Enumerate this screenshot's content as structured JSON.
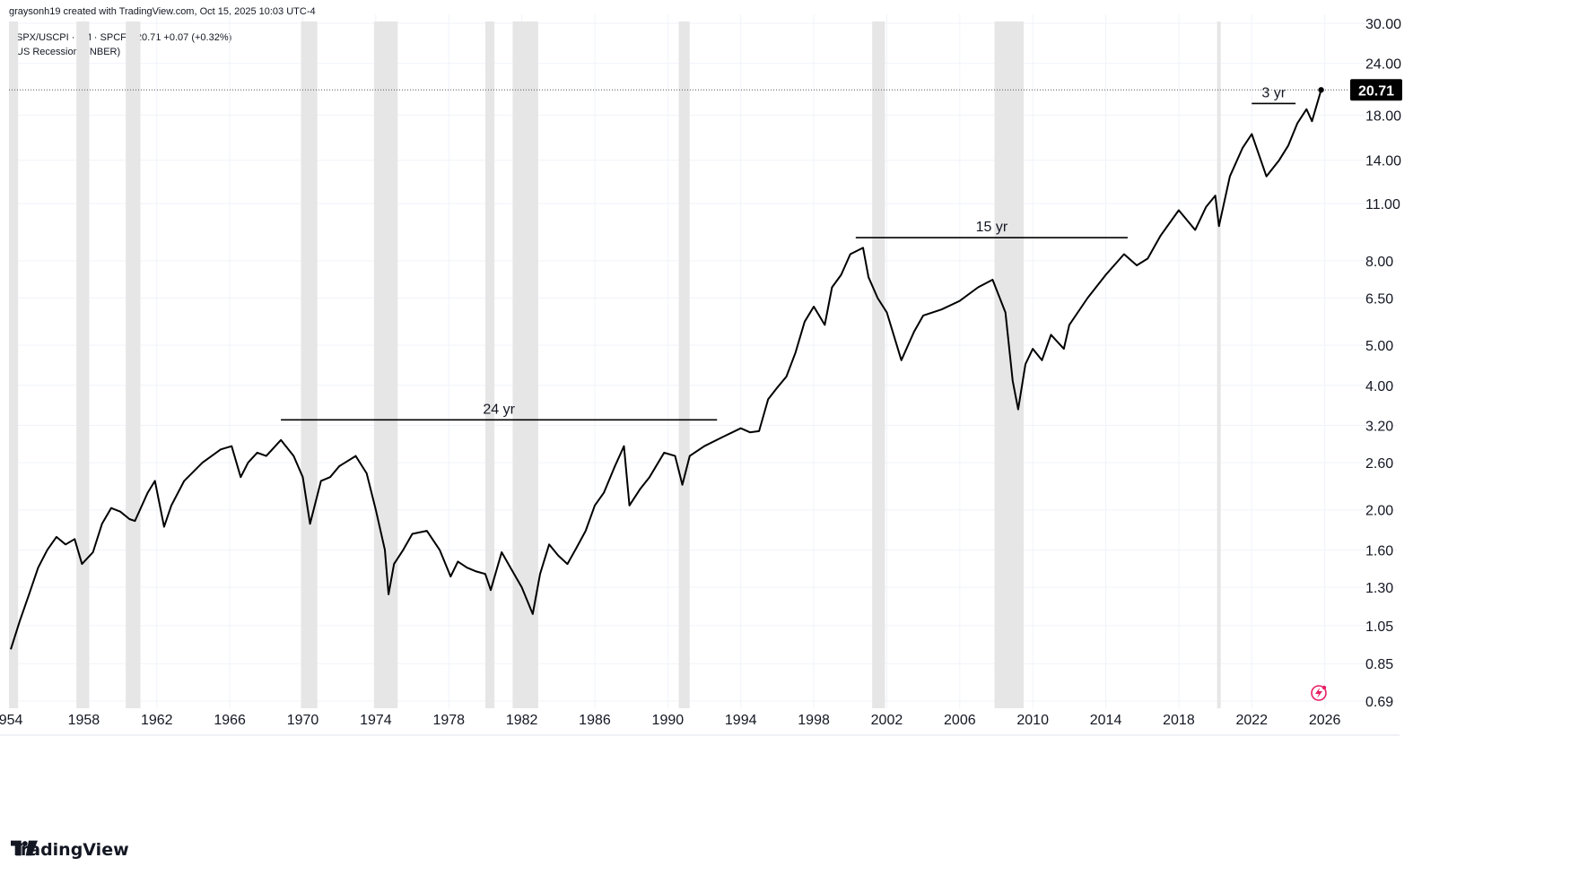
{
  "header": {
    "credit": "graysonh19 created with TradingView.com, Oct 15, 2025 10:03 UTC-4",
    "legend_line1": "SPX/USCPI · 1M · SPCFD  20.71  +0.07 (+0.32%)",
    "legend_line2": "US Recessions (NBER)"
  },
  "brand": {
    "name": "TradingView",
    "icon": "tradingview-logo-icon"
  },
  "price_label": "20.71",
  "chart_data": {
    "type": "line",
    "series": [
      {
        "name": "SPX/USCPI",
        "points": [
          [
            1954.0,
            0.92
          ],
          [
            1954.5,
            1.08
          ],
          [
            1955.0,
            1.25
          ],
          [
            1955.5,
            1.45
          ],
          [
            1956.0,
            1.6
          ],
          [
            1956.5,
            1.72
          ],
          [
            1957.0,
            1.65
          ],
          [
            1957.5,
            1.7
          ],
          [
            1957.9,
            1.48
          ],
          [
            1958.5,
            1.58
          ],
          [
            1959.0,
            1.85
          ],
          [
            1959.5,
            2.02
          ],
          [
            1960.0,
            1.98
          ],
          [
            1960.5,
            1.9
          ],
          [
            1960.8,
            1.88
          ],
          [
            1961.5,
            2.2
          ],
          [
            1961.9,
            2.35
          ],
          [
            1962.4,
            1.82
          ],
          [
            1962.8,
            2.05
          ],
          [
            1963.5,
            2.35
          ],
          [
            1964.5,
            2.6
          ],
          [
            1965.5,
            2.8
          ],
          [
            1966.1,
            2.85
          ],
          [
            1966.6,
            2.4
          ],
          [
            1967.0,
            2.6
          ],
          [
            1967.5,
            2.75
          ],
          [
            1968.0,
            2.7
          ],
          [
            1968.8,
            2.95
          ],
          [
            1969.5,
            2.7
          ],
          [
            1970.0,
            2.4
          ],
          [
            1970.4,
            1.85
          ],
          [
            1971.0,
            2.35
          ],
          [
            1971.5,
            2.4
          ],
          [
            1972.0,
            2.55
          ],
          [
            1972.9,
            2.7
          ],
          [
            1973.5,
            2.45
          ],
          [
            1974.0,
            2.0
          ],
          [
            1974.5,
            1.6
          ],
          [
            1974.7,
            1.25
          ],
          [
            1975.0,
            1.48
          ],
          [
            1975.5,
            1.6
          ],
          [
            1976.0,
            1.75
          ],
          [
            1976.8,
            1.78
          ],
          [
            1977.5,
            1.6
          ],
          [
            1978.1,
            1.38
          ],
          [
            1978.5,
            1.5
          ],
          [
            1979.0,
            1.45
          ],
          [
            1979.5,
            1.42
          ],
          [
            1980.0,
            1.4
          ],
          [
            1980.3,
            1.28
          ],
          [
            1980.9,
            1.58
          ],
          [
            1981.5,
            1.42
          ],
          [
            1982.0,
            1.3
          ],
          [
            1982.6,
            1.12
          ],
          [
            1983.0,
            1.4
          ],
          [
            1983.5,
            1.65
          ],
          [
            1984.0,
            1.55
          ],
          [
            1984.5,
            1.48
          ],
          [
            1985.0,
            1.62
          ],
          [
            1985.5,
            1.78
          ],
          [
            1986.0,
            2.05
          ],
          [
            1986.5,
            2.2
          ],
          [
            1987.1,
            2.55
          ],
          [
            1987.6,
            2.85
          ],
          [
            1987.9,
            2.05
          ],
          [
            1988.5,
            2.25
          ],
          [
            1989.0,
            2.4
          ],
          [
            1989.8,
            2.75
          ],
          [
            1990.4,
            2.7
          ],
          [
            1990.8,
            2.3
          ],
          [
            1991.2,
            2.7
          ],
          [
            1992.0,
            2.85
          ],
          [
            1993.0,
            3.0
          ],
          [
            1994.0,
            3.15
          ],
          [
            1994.5,
            3.08
          ],
          [
            1995.0,
            3.1
          ],
          [
            1995.5,
            3.7
          ],
          [
            1996.0,
            3.95
          ],
          [
            1996.5,
            4.2
          ],
          [
            1997.0,
            4.8
          ],
          [
            1997.5,
            5.7
          ],
          [
            1998.0,
            6.2
          ],
          [
            1998.6,
            5.6
          ],
          [
            1999.0,
            6.9
          ],
          [
            1999.5,
            7.4
          ],
          [
            2000.0,
            8.3
          ],
          [
            2000.7,
            8.6
          ],
          [
            2001.0,
            7.3
          ],
          [
            2001.5,
            6.5
          ],
          [
            2002.0,
            6.0
          ],
          [
            2002.8,
            4.6
          ],
          [
            2003.5,
            5.4
          ],
          [
            2004.0,
            5.9
          ],
          [
            2005.0,
            6.1
          ],
          [
            2006.0,
            6.4
          ],
          [
            2007.0,
            6.9
          ],
          [
            2007.8,
            7.2
          ],
          [
            2008.5,
            6.0
          ],
          [
            2008.9,
            4.1
          ],
          [
            2009.2,
            3.5
          ],
          [
            2009.6,
            4.5
          ],
          [
            2010.0,
            4.9
          ],
          [
            2010.5,
            4.6
          ],
          [
            2011.0,
            5.3
          ],
          [
            2011.7,
            4.9
          ],
          [
            2012.0,
            5.6
          ],
          [
            2013.0,
            6.5
          ],
          [
            2014.0,
            7.4
          ],
          [
            2015.0,
            8.3
          ],
          [
            2015.7,
            7.8
          ],
          [
            2016.3,
            8.1
          ],
          [
            2017.0,
            9.2
          ],
          [
            2018.0,
            10.6
          ],
          [
            2018.9,
            9.5
          ],
          [
            2019.5,
            10.8
          ],
          [
            2020.0,
            11.5
          ],
          [
            2020.2,
            9.7
          ],
          [
            2020.8,
            12.8
          ],
          [
            2021.5,
            15.0
          ],
          [
            2022.0,
            16.2
          ],
          [
            2022.8,
            12.8
          ],
          [
            2023.5,
            14.0
          ],
          [
            2024.0,
            15.2
          ],
          [
            2024.5,
            17.2
          ],
          [
            2025.0,
            18.6
          ],
          [
            2025.3,
            17.4
          ],
          [
            2025.8,
            20.71
          ]
        ]
      }
    ],
    "x_ticks": [
      "1954",
      "1958",
      "1962",
      "1966",
      "1970",
      "1974",
      "1978",
      "1982",
      "1986",
      "1990",
      "1994",
      "1998",
      "2002",
      "2006",
      "2010",
      "2014",
      "2018",
      "2022",
      "2026"
    ],
    "x_tick_labels": [
      "954",
      "1958",
      "1962",
      "1966",
      "1970",
      "1974",
      "1978",
      "1982",
      "1986",
      "1990",
      "1994",
      "1998",
      "2002",
      "2006",
      "2010",
      "2014",
      "2018",
      "2022",
      "2026"
    ],
    "y_ticks": [
      "30.00",
      "24.00",
      "18.00",
      "14.00",
      "11.00",
      "8.00",
      "6.50",
      "5.00",
      "4.00",
      "3.20",
      "2.60",
      "2.00",
      "1.60",
      "1.30",
      "1.05",
      "0.85",
      "0.69"
    ],
    "y_scale": "log",
    "xlim": [
      1953.9,
      2027.0
    ],
    "ylim": [
      0.69,
      30.0
    ],
    "recessions": [
      [
        1953.6,
        1954.4
      ],
      [
        1957.6,
        1958.3
      ],
      [
        1960.3,
        1961.1
      ],
      [
        1969.9,
        1970.8
      ],
      [
        1973.9,
        1975.2
      ],
      [
        1980.0,
        1980.5
      ],
      [
        1981.5,
        1982.9
      ],
      [
        1990.6,
        1991.2
      ],
      [
        2001.2,
        2001.9
      ],
      [
        2007.9,
        2009.5
      ],
      [
        2020.1,
        2020.3
      ]
    ],
    "annotations": [
      {
        "label": "24 yr",
        "x_start": 1968.8,
        "x_end": 1992.7,
        "y": 3.3
      },
      {
        "label": "15 yr",
        "x_start": 2000.3,
        "x_end": 2015.2,
        "y": 9.1
      },
      {
        "label": "3 yr",
        "x_start": 2022.0,
        "x_end": 2024.4,
        "y": 19.2
      }
    ],
    "last_value": 20.71,
    "grid": true,
    "legend": "top-left"
  }
}
